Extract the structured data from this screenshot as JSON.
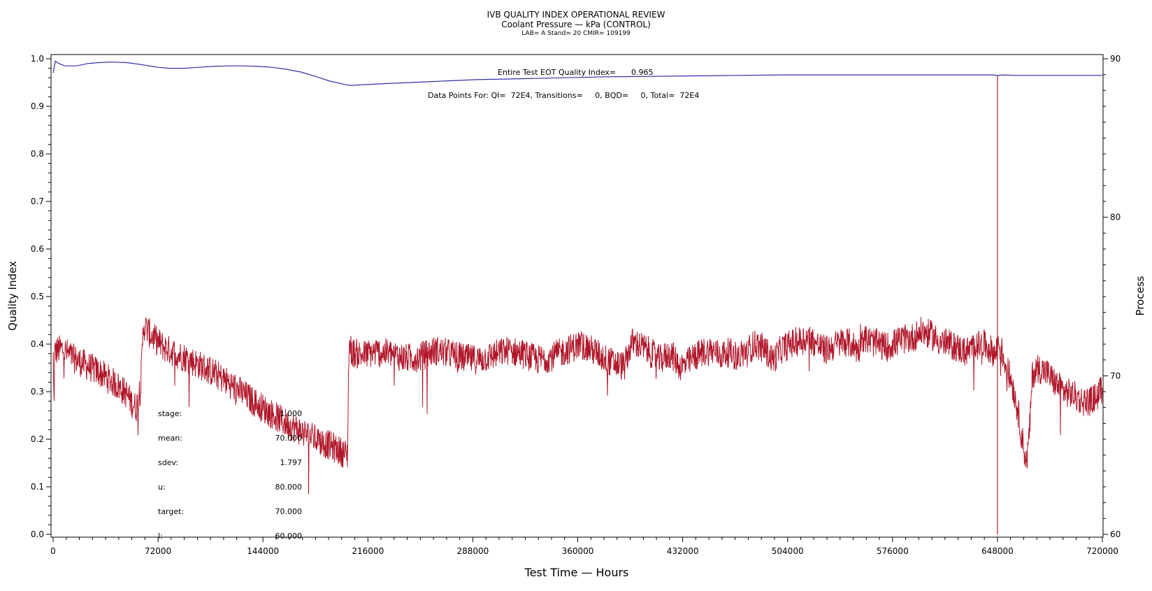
{
  "header": {
    "title": "IVB QUALITY INDEX OPERATIONAL REVIEW",
    "subtitle": "Coolant Pressure — kPa (CONTROL)",
    "subsubtitle": "LAB= A Stand= 20 CMIR= 109199"
  },
  "chart_data": {
    "type": "line",
    "xlabel": "Test Time — Hours",
    "ylabel_left": "Quality Index",
    "ylabel_right": "Process",
    "xlim": [
      0,
      720000
    ],
    "ylim_left": [
      0.0,
      1.0
    ],
    "ylim_right": [
      60,
      90
    ],
    "x_ticks": [
      "0",
      "72000",
      "144000",
      "216000",
      "288000",
      "360000",
      "432000",
      "504000",
      "576000",
      "648000",
      "720000"
    ],
    "y_left_ticks": [
      "0.0",
      "0.1",
      "0.2",
      "0.3",
      "0.4",
      "0.5",
      "0.6",
      "0.7",
      "0.8",
      "0.9",
      "1.0"
    ],
    "y_right_ticks": [
      "60",
      "70",
      "80",
      "90"
    ],
    "colors": {
      "quality_index": "#3030a8",
      "process": "#b0172a"
    },
    "annotations": {
      "eot_label": "Entire Test EOT Quality Index=",
      "eot_value": "0.965",
      "data_points": "Data Points For: QI=  72E4, Transitions=     0, BQD=     0, Total=  72E4"
    },
    "stats": [
      {
        "label": "stage:",
        "value": "1.000"
      },
      {
        "label": "mean:",
        "value": "70.000"
      },
      {
        "label": "sdev:",
        "value": "1.797"
      },
      {
        "label": "u:",
        "value": "80.000"
      },
      {
        "label": "target:",
        "value": "70.000"
      },
      {
        "label": "l:",
        "value": "60.000"
      }
    ],
    "series": [
      {
        "axis": "left",
        "x": [
          0,
          1500,
          4000,
          8000,
          16000,
          24000,
          32000,
          40000,
          50000,
          60000,
          70000,
          72000,
          80000,
          90000,
          100000,
          110000,
          120000,
          130000,
          140000,
          150000,
          160000,
          170000,
          180000,
          190000,
          200000,
          204000,
          210000,
          230000,
          260000,
          290000,
          320000,
          350000,
          380000,
          410000,
          440000,
          470000,
          500000,
          530000,
          560000,
          590000,
          620000,
          645000,
          648000,
          652000,
          660000,
          680000,
          700000,
          720000
        ],
        "values": [
          0.97,
          0.995,
          0.99,
          0.985,
          0.985,
          0.99,
          0.992,
          0.993,
          0.992,
          0.988,
          0.983,
          0.982,
          0.98,
          0.98,
          0.982,
          0.984,
          0.985,
          0.985,
          0.984,
          0.982,
          0.978,
          0.972,
          0.963,
          0.953,
          0.946,
          0.944,
          0.945,
          0.948,
          0.952,
          0.956,
          0.958,
          0.96,
          0.962,
          0.963,
          0.964,
          0.965,
          0.966,
          0.966,
          0.966,
          0.966,
          0.966,
          0.966,
          0.965,
          0.966,
          0.965,
          0.965,
          0.965,
          0.965
        ]
      },
      {
        "axis": "right",
        "x": [
          0,
          600,
          1000,
          3000,
          6000,
          10000,
          14000,
          20000,
          26000,
          32000,
          38000,
          44000,
          50000,
          54000,
          57000,
          60000,
          62000,
          66000,
          70000,
          76000,
          84000,
          92000,
          100000,
          110000,
          120000,
          130000,
          140000,
          150000,
          160000,
          170000,
          180000,
          190000,
          198000,
          202000,
          203000,
          205000,
          212000,
          222000,
          232000,
          242000,
          252000,
          262000,
          272000,
          282000,
          292000,
          302000,
          312000,
          322000,
          332000,
          342000,
          352000,
          362000,
          372000,
          382000,
          392000,
          397000,
          401000,
          408000,
          416000,
          424000,
          430000,
          434000,
          440000,
          446000,
          452000,
          458000,
          464000,
          470000,
          476000,
          482000,
          488000,
          494000,
          500000,
          506000,
          512000,
          518000,
          524000,
          530000,
          536000,
          542000,
          548000,
          553000,
          554000,
          560000,
          566000,
          572000,
          578000,
          584000,
          590000,
          596000,
          602000,
          608000,
          614000,
          620000,
          626000,
          632000,
          638000,
          644000,
          647000,
          648000,
          650000,
          654000,
          658000,
          662000,
          665000,
          668000,
          670000,
          672000,
          676000,
          682000,
          688000,
          694000,
          700000,
          706000,
          712000,
          716000,
          720000
        ],
        "values": [
          71.2,
          68.0,
          71.5,
          71.6,
          71.7,
          71.4,
          71.1,
          70.8,
          70.5,
          70.2,
          69.8,
          69.4,
          68.9,
          68.3,
          68.0,
          69.2,
          73.2,
          72.7,
          72.3,
          71.8,
          71.4,
          71.1,
          70.7,
          70.2,
          69.6,
          68.9,
          68.2,
          67.6,
          67.0,
          66.5,
          66.0,
          65.6,
          65.2,
          65.0,
          72.0,
          71.5,
          71.3,
          71.5,
          71.4,
          71.1,
          71.2,
          71.6,
          71.4,
          71.1,
          71.0,
          71.3,
          71.6,
          71.4,
          71.0,
          71.2,
          71.6,
          72.0,
          71.5,
          70.9,
          70.6,
          72.1,
          72.0,
          71.6,
          71.0,
          71.4,
          70.6,
          70.7,
          71.2,
          71.5,
          71.6,
          71.3,
          71.5,
          71.2,
          71.6,
          72.0,
          71.7,
          71.0,
          71.7,
          72.0,
          72.2,
          72.4,
          72.0,
          71.6,
          71.9,
          72.2,
          72.0,
          71.6,
          72.5,
          72.2,
          72.0,
          71.8,
          72.1,
          72.3,
          72.4,
          72.8,
          72.6,
          72.2,
          72.0,
          71.8,
          71.5,
          71.8,
          72.0,
          71.6,
          71.3,
          72.2,
          71.8,
          70.6,
          69.6,
          67.8,
          66.0,
          64.5,
          66.5,
          70.1,
          70.5,
          70.2,
          69.5,
          69.0,
          68.8,
          68.4,
          68.4,
          68.7,
          69.2
        ]
      }
    ]
  }
}
